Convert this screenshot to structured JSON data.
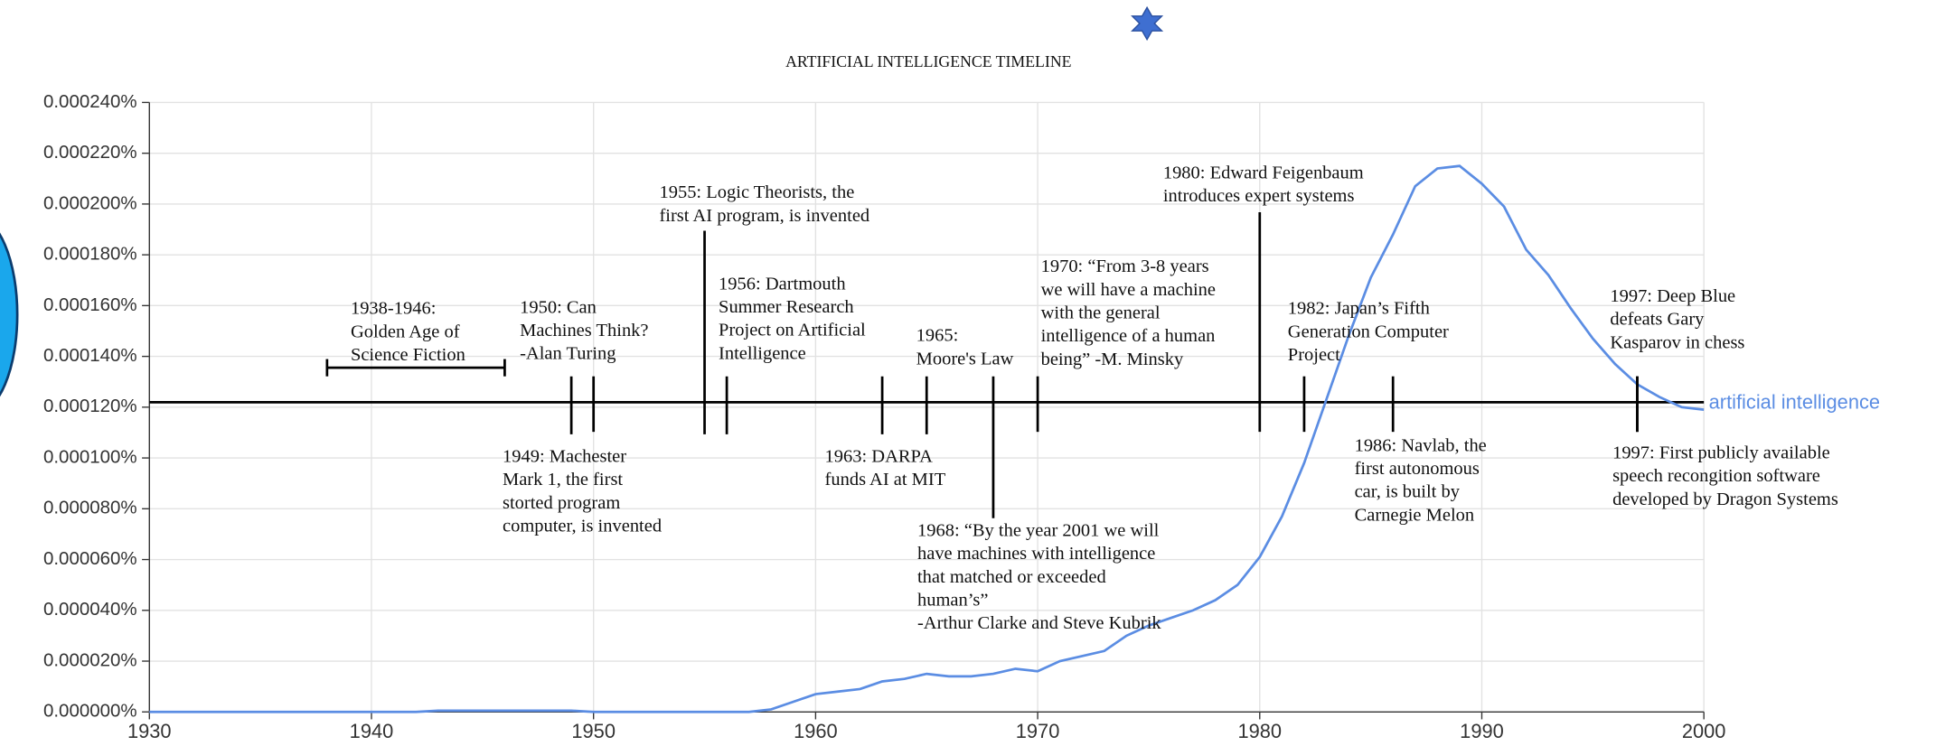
{
  "chart_data": {
    "type": "line",
    "title": "ARTIFICIAL INTELLIGENCE TIMELINE",
    "x": [
      1930,
      1931,
      1932,
      1933,
      1934,
      1935,
      1936,
      1937,
      1938,
      1939,
      1940,
      1941,
      1942,
      1943,
      1944,
      1945,
      1946,
      1947,
      1948,
      1949,
      1950,
      1951,
      1952,
      1953,
      1954,
      1955,
      1956,
      1957,
      1958,
      1959,
      1960,
      1961,
      1962,
      1963,
      1964,
      1965,
      1966,
      1967,
      1968,
      1969,
      1970,
      1971,
      1972,
      1973,
      1974,
      1975,
      1976,
      1977,
      1978,
      1979,
      1980,
      1981,
      1982,
      1983,
      1984,
      1985,
      1986,
      1987,
      1988,
      1989,
      1990,
      1991,
      1992,
      1993,
      1994,
      1995,
      1996,
      1997,
      1998,
      1999,
      2000
    ],
    "series": [
      {
        "name": "artificial intelligence",
        "color": "#5b8de3",
        "values": [
          0,
          0,
          0,
          0,
          0,
          0,
          0,
          0,
          0,
          0,
          0,
          0,
          0,
          5e-07,
          5e-07,
          5e-07,
          5e-07,
          5e-07,
          5e-07,
          5e-07,
          0,
          0,
          0,
          0,
          0,
          0,
          0,
          0,
          1e-06,
          4e-06,
          7e-06,
          8e-06,
          9e-06,
          1.2e-05,
          1.3e-05,
          1.5e-05,
          1.4e-05,
          1.4e-05,
          1.5e-05,
          1.7e-05,
          1.6e-05,
          2e-05,
          2.2e-05,
          2.4e-05,
          3e-05,
          3.4e-05,
          3.7e-05,
          4e-05,
          4.4e-05,
          5e-05,
          6.1e-05,
          7.7e-05,
          9.8e-05,
          0.000123,
          0.000148,
          0.000171,
          0.000188,
          0.000207,
          0.000214,
          0.000215,
          0.000208,
          0.000199,
          0.000182,
          0.000172,
          0.000159,
          0.000147,
          0.000137,
          0.000129,
          0.000124,
          0.00012,
          0.000119
        ]
      }
    ],
    "xlim": [
      1930,
      2000
    ],
    "xticks": [
      1930,
      1940,
      1950,
      1960,
      1970,
      1980,
      1990,
      2000
    ],
    "ylim": [
      0,
      0.00024
    ],
    "yticks": [
      {
        "value": 0,
        "label": "0.000000%"
      },
      {
        "value": 2e-05,
        "label": "0.000020%"
      },
      {
        "value": 4e-05,
        "label": "0.000040%"
      },
      {
        "value": 6e-05,
        "label": "0.000060%"
      },
      {
        "value": 8e-05,
        "label": "0.000080%"
      },
      {
        "value": 0.0001,
        "label": "0.000100%"
      },
      {
        "value": 0.00012,
        "label": "0.000120%"
      },
      {
        "value": 0.00014,
        "label": "0.000140%"
      },
      {
        "value": 0.00016,
        "label": "0.000160%"
      },
      {
        "value": 0.00018,
        "label": "0.000180%"
      },
      {
        "value": 0.0002,
        "label": "0.000200%"
      },
      {
        "value": 0.00022,
        "label": "0.000220%"
      },
      {
        "value": 0.00024,
        "label": "0.000240%"
      }
    ],
    "grid": true,
    "annotations": [
      {
        "years": [
          1938,
          1946
        ],
        "lines": [
          "1938-1946:",
          "Golden Age of",
          "Science Fiction"
        ]
      },
      {
        "year": 1949,
        "lines": [
          "1949: Machester",
          "Mark 1, the first",
          "storted program",
          "computer, is invented"
        ]
      },
      {
        "year": 1950,
        "lines": [
          "1950: Can",
          "Machines Think?",
          "-Alan Turing"
        ]
      },
      {
        "year": 1955,
        "lines": [
          "1955: Logic Theorists, the",
          "first AI program, is invented"
        ]
      },
      {
        "year": 1956,
        "lines": [
          "1956: Dartmouth",
          "Summer Research",
          "Project on Artificial",
          "Intelligence"
        ]
      },
      {
        "year": 1963,
        "lines": [
          "1963: DARPA",
          "funds AI at MIT"
        ]
      },
      {
        "year": 1965,
        "lines": [
          "1965:",
          "Moore's Law"
        ]
      },
      {
        "year": 1968,
        "lines": [
          "1968: “By the year 2001 we will",
          "have machines with intelligence",
          "that matched or exceeded",
          "human’s”",
          "-Arthur Clarke and Steve Kubrik"
        ]
      },
      {
        "year": 1970,
        "lines": [
          "1970: “From 3-8 years",
          "we will have a machine",
          "with the general",
          "intelligence of a human",
          "being” -M. Minsky"
        ]
      },
      {
        "year": 1980,
        "lines": [
          "1980: Edward Feigenbaum",
          "introduces expert systems"
        ]
      },
      {
        "year": 1982,
        "lines": [
          "1982: Japan’s Fifth",
          "Generation Computer",
          "Project"
        ]
      },
      {
        "year": 1986,
        "lines": [
          "1986: Navlab, the",
          "first autonomous",
          "car, is built by",
          "Carnegie Melon"
        ]
      },
      {
        "year": 1997,
        "lines": [
          "1997: Deep Blue",
          "defeats Gary",
          "Kasparov in chess"
        ]
      },
      {
        "year": 1997,
        "lines": [
          "1997: First publicly available",
          "speech recongition software",
          "developed by Dragon Systems"
        ]
      }
    ]
  }
}
